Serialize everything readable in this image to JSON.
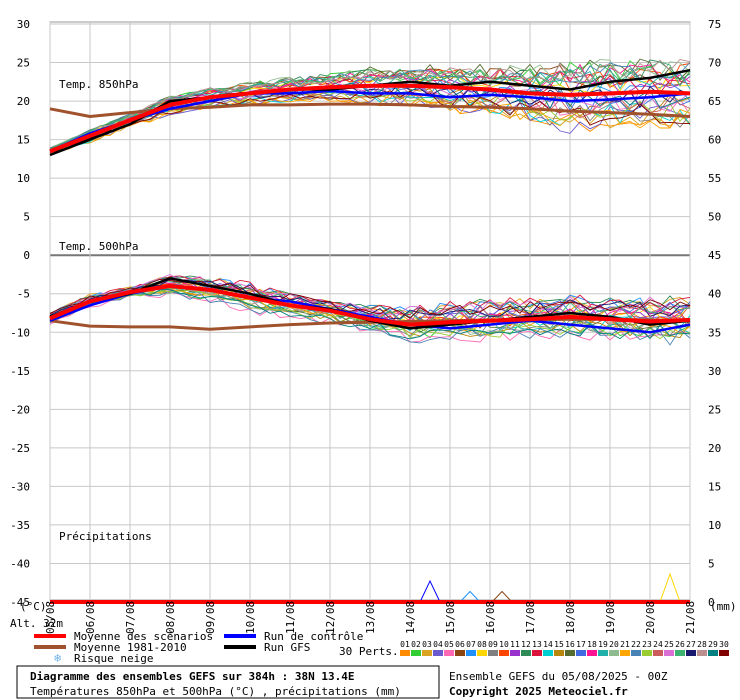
{
  "chart_data": {
    "type": "line",
    "title": "Diagramme des ensembles GEFS sur 384h : 38N 13.4E",
    "subtitle": "Températures 850hPa et 500hPa (°C) , précipitations (mm)",
    "run_label": "Ensemble GEFS du 05/08/2025 - 00Z",
    "copyright": "Copyright 2025 Meteociel.fr",
    "altitude_label": "Alt. 32m",
    "left_unit": "(°C)",
    "right_unit": "(mm)",
    "x_labels": [
      "05/08",
      "06/08",
      "07/08",
      "08/08",
      "09/08",
      "10/08",
      "11/08",
      "12/08",
      "13/08",
      "14/08",
      "15/08",
      "16/08",
      "17/08",
      "18/08",
      "19/08",
      "20/08",
      "21/08"
    ],
    "y_left_ticks": [
      "30",
      "25",
      "20",
      "15",
      "10",
      "5",
      "0",
      "-5",
      "-10",
      "-15",
      "-20",
      "-25",
      "-30",
      "-35",
      "-40",
      "-45"
    ],
    "y_right_ticks": [
      "75",
      "70",
      "65",
      "60",
      "55",
      "50",
      "45",
      "40",
      "35",
      "30",
      "25",
      "20",
      "15",
      "10",
      "5",
      "0"
    ],
    "y_left_range": [
      -45,
      30
    ],
    "panel_labels": {
      "t850": "Temp. 850hPa",
      "t500": "Temp. 500hPa",
      "precip": "Précipitations"
    },
    "t850": {
      "mean": [
        13.5,
        15.5,
        17.5,
        19.5,
        20.5,
        21.0,
        21.5,
        21.8,
        22.0,
        22.0,
        21.8,
        21.5,
        21.0,
        20.8,
        21.0,
        21.2,
        21.0
      ],
      "clim": [
        19.0,
        18.0,
        18.5,
        19.0,
        19.2,
        19.5,
        19.5,
        19.6,
        19.6,
        19.5,
        19.3,
        19.2,
        19.0,
        18.7,
        18.5,
        18.3,
        18.0
      ],
      "control": [
        13.5,
        15.8,
        17.5,
        19.0,
        20.0,
        21.0,
        21.0,
        21.3,
        21.0,
        21.0,
        20.5,
        20.8,
        20.5,
        20.0,
        20.2,
        20.5,
        21.0
      ],
      "gfs": [
        13.0,
        15.0,
        17.0,
        20.0,
        20.5,
        21.0,
        21.5,
        21.5,
        22.0,
        22.5,
        22.0,
        22.5,
        22.0,
        21.5,
        22.5,
        23.0,
        24.0
      ],
      "spread_hi": [
        14.0,
        16.5,
        18.5,
        21.0,
        22.0,
        23.0,
        23.5,
        24.0,
        24.5,
        25.0,
        25.5,
        25.5,
        26.0,
        26.5,
        26.5,
        27.0,
        27.5
      ],
      "spread_lo": [
        13.0,
        14.5,
        16.5,
        18.0,
        19.0,
        19.5,
        19.5,
        19.5,
        19.0,
        19.0,
        18.5,
        18.0,
        17.5,
        15.5,
        16.5,
        16.5,
        16.5
      ]
    },
    "t500": {
      "mean": [
        -8.2,
        -6.0,
        -4.8,
        -4.0,
        -4.5,
        -5.5,
        -6.5,
        -7.2,
        -8.3,
        -9.0,
        -8.7,
        -8.5,
        -8.3,
        -8.0,
        -8.3,
        -8.6,
        -8.4
      ],
      "clim": [
        -8.5,
        -9.2,
        -9.3,
        -9.3,
        -9.6,
        -9.3,
        -9.0,
        -8.8,
        -8.7,
        -8.6,
        -8.5,
        -8.4,
        -8.4,
        -8.3,
        -8.3,
        -8.4,
        -8.5
      ],
      "control": [
        -8.5,
        -6.5,
        -5.0,
        -4.0,
        -4.5,
        -5.5,
        -6.0,
        -7.0,
        -8.0,
        -9.0,
        -9.5,
        -9.0,
        -8.5,
        -9.0,
        -9.5,
        -10.0,
        -9.0
      ],
      "gfs": [
        -8.0,
        -6.0,
        -5.0,
        -3.0,
        -4.0,
        -5.0,
        -6.5,
        -7.0,
        -8.5,
        -9.5,
        -9.0,
        -8.5,
        -8.0,
        -7.5,
        -8.0,
        -9.0,
        -8.5
      ],
      "spread_hi": [
        -7.5,
        -5.0,
        -4.0,
        -2.0,
        -2.5,
        -3.5,
        -5.0,
        -6.0,
        -6.5,
        -6.5,
        -6.0,
        -5.5,
        -5.5,
        -5.0,
        -5.0,
        -5.0,
        -5.0
      ],
      "spread_lo": [
        -9.5,
        -7.0,
        -5.5,
        -5.5,
        -6.5,
        -8.0,
        -9.0,
        -10.0,
        -11.0,
        -12.0,
        -12.0,
        -12.0,
        -11.5,
        -12.0,
        -11.5,
        -12.5,
        -12.0
      ]
    },
    "precip_mm": {
      "mean": [
        0,
        0,
        0,
        0,
        0,
        0,
        0,
        0,
        0,
        0,
        0,
        0,
        0,
        0,
        0,
        0,
        0
      ],
      "peaks": [
        {
          "x": 9.5,
          "value": 3.0
        },
        {
          "x": 10.5,
          "value": 1.5
        },
        {
          "x": 11.3,
          "value": 1.5
        },
        {
          "x": 15.5,
          "value": 4.0
        }
      ]
    },
    "legend": [
      {
        "label": "Moyenne des scénarios",
        "color": "#ff0000"
      },
      {
        "label": "Moyenne 1981-2010",
        "color": "#a0522d"
      },
      {
        "label": "Risque neige",
        "color": "#6fb3e8"
      },
      {
        "label": "Run de contrôle",
        "color": "#0000ff"
      },
      {
        "label": "Run GFS",
        "color": "#000000"
      }
    ],
    "perts_label": "30 Perts.",
    "perts_ids": [
      "01",
      "02",
      "03",
      "04",
      "05",
      "06",
      "07",
      "08",
      "09",
      "10",
      "11",
      "12",
      "13",
      "14",
      "15",
      "16",
      "17",
      "18",
      "19",
      "20",
      "21",
      "22",
      "23",
      "24",
      "25",
      "26",
      "27",
      "28",
      "29",
      "30"
    ],
    "perts_colors": [
      "#ff8c00",
      "#32cd32",
      "#daa520",
      "#6a5acd",
      "#ff69b4",
      "#8b4513",
      "#1e90ff",
      "#ffd700",
      "#808080",
      "#ff4500",
      "#9932cc",
      "#2e8b57",
      "#dc143c",
      "#00ced1",
      "#b8860b",
      "#556b2f",
      "#4169e1",
      "#ff1493",
      "#20b2aa",
      "#8fbc8f",
      "#ffa500",
      "#4682b4",
      "#9acd32",
      "#cd5c5c",
      "#da70d6",
      "#3cb371",
      "#191970",
      "#bc8f8f",
      "#008080",
      "#800000"
    ]
  }
}
